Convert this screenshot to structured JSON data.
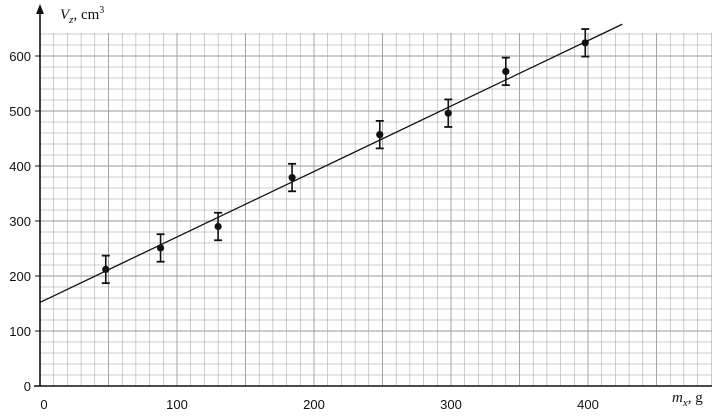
{
  "chart_data": {
    "type": "scatter",
    "xlabel": "m_x, g",
    "xlabel_parts": {
      "var": "m",
      "sub": "x",
      "unit": ", g"
    },
    "ylabel": "V_z, cm^3",
    "ylabel_parts": {
      "var": "V",
      "sub": "z",
      "unit": ", cm",
      "sup": "3"
    },
    "xlim": [
      0,
      420
    ],
    "ylim": [
      0,
      640
    ],
    "x_ticks": [
      0,
      100,
      200,
      300,
      400
    ],
    "y_ticks": [
      0,
      100,
      200,
      300,
      400,
      500,
      600
    ],
    "grid": true,
    "series": [
      {
        "points": [
          {
            "x": 48,
            "y": 212,
            "err": 25
          },
          {
            "x": 88,
            "y": 251,
            "err": 25
          },
          {
            "x": 130,
            "y": 290,
            "err": 25
          },
          {
            "x": 184,
            "y": 379,
            "err": 25
          },
          {
            "x": 248,
            "y": 457,
            "err": 25
          },
          {
            "x": 298,
            "y": 496,
            "err": 25
          },
          {
            "x": 340,
            "y": 572,
            "err": 25
          },
          {
            "x": 398,
            "y": 624,
            "err": 25
          }
        ]
      }
    ],
    "fit_line": {
      "intercept": 152,
      "slope": 1.19,
      "x_end": 425
    },
    "colors": {
      "grid": "#9a9a9a",
      "ink": "#111111"
    }
  }
}
